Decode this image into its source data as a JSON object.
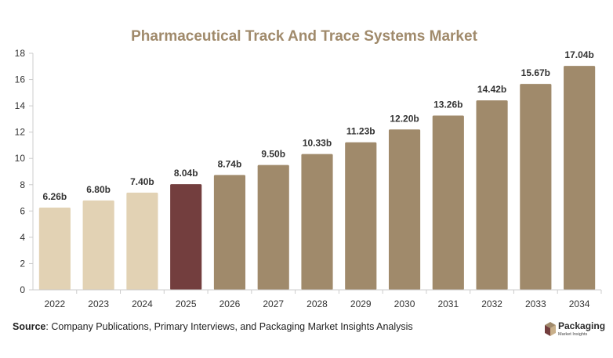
{
  "chart_data": {
    "type": "bar",
    "title": "Pharmaceutical Track And Trace Systems Market",
    "xlabel": "",
    "ylabel": "",
    "ylim": [
      0,
      18
    ],
    "yticks": [
      0,
      2,
      4,
      6,
      8,
      10,
      12,
      14,
      16,
      18
    ],
    "grid": false,
    "categories": [
      "2022",
      "2023",
      "2024",
      "2025",
      "2026",
      "2027",
      "2028",
      "2029",
      "2030",
      "2031",
      "2032",
      "2033",
      "2034"
    ],
    "values": [
      6.26,
      6.8,
      7.4,
      8.04,
      8.74,
      9.5,
      10.33,
      11.23,
      12.2,
      13.26,
      14.42,
      15.67,
      17.04
    ],
    "value_labels": [
      "6.26b",
      "6.80b",
      "7.40b",
      "8.04b",
      "8.74b",
      "9.50b",
      "10.33b",
      "11.23b",
      "12.20b",
      "13.26b",
      "14.42b",
      "15.67b",
      "17.04b"
    ],
    "bar_colors": [
      "#e2d2b4",
      "#e2d2b4",
      "#e2d2b4",
      "#733e3e",
      "#a08a6b",
      "#a08a6b",
      "#a08a6b",
      "#a08a6b",
      "#a08a6b",
      "#a08a6b",
      "#a08a6b",
      "#a08a6b",
      "#a08a6b"
    ]
  },
  "colors": {
    "title": "#a08a6b",
    "axis": "#cccccc",
    "text": "#333333"
  },
  "footer": {
    "source_label": "Source",
    "source_text": ": Company Publications, Primary Interviews, and Packaging Market Insights Analysis"
  },
  "logo": {
    "name": "Packaging",
    "tagline": "Market Insights",
    "icon": "package-box-icon"
  }
}
